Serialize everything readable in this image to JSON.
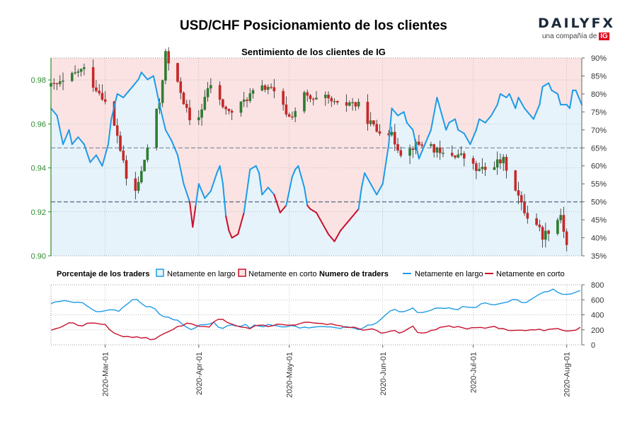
{
  "brand": {
    "name": "DAILYFX",
    "tagline": "una compañía de",
    "tagline_mark": "IG"
  },
  "chart_data": {
    "type": "candlestick",
    "title": "USD/CHF Posicionamiento de los clientes",
    "subtitle": "Sentimiento de los clientes de IG",
    "price_axis": {
      "range": [
        0.9,
        0.99
      ],
      "ticks": [
        "0.90",
        "0.92",
        "0.94",
        "0.96",
        "0.98"
      ],
      "tick_values": [
        0.9,
        0.92,
        0.94,
        0.96,
        0.98
      ]
    },
    "pct_axis": {
      "range": [
        35,
        90
      ],
      "ticks": [
        "35%",
        "40%",
        "45%",
        "50%",
        "55%",
        "60%",
        "65%",
        "70%",
        "75%",
        "80%",
        "85%",
        "90%"
      ],
      "tick_values": [
        35,
        40,
        45,
        50,
        55,
        60,
        65,
        70,
        75,
        80,
        85,
        90
      ]
    },
    "count_axis": {
      "range": [
        0,
        800
      ],
      "ticks": [
        "0",
        "200",
        "400",
        "600",
        "800"
      ],
      "tick_values": [
        0,
        200,
        400,
        600,
        800
      ]
    },
    "x_ticks": [
      "2020-Mar-01",
      "2020-Apr-01",
      "2020-May-01",
      "2020-Jun-01",
      "2020-Jul-01",
      "2020-Aug-01"
    ],
    "x_tick_days": [
      18,
      49,
      79,
      110,
      140,
      171
    ],
    "day_range": [
      0,
      176
    ],
    "reference_lines_pct": [
      50,
      65
    ],
    "colors": {
      "long": "#1e9be6",
      "short": "#c8102e",
      "up": "#2e7d32",
      "down": "#c62828",
      "long_fill": "#e6f3fb",
      "short_fill": "#fbe3e3",
      "axis_green": "#2e8b2e",
      "grid": "#b0b0b0",
      "ref": "#6b7a90"
    },
    "legend": {
      "pct_title": "Porcentaje de los traders",
      "pct_long": "Netamente en largo",
      "pct_short": "Netamente en corto",
      "num_title": "Numero de traders",
      "num_long": "Netamente en largo",
      "num_short": "Netamente en corto"
    },
    "price_path": [
      [
        0,
        0.977
      ],
      [
        5,
        0.979
      ],
      [
        9,
        0.984
      ],
      [
        12,
        0.985
      ],
      [
        14,
        0.978
      ],
      [
        17,
        0.973
      ],
      [
        19,
        0.966
      ],
      [
        22,
        0.955
      ],
      [
        25,
        0.935
      ],
      [
        27,
        0.925
      ],
      [
        30,
        0.938
      ],
      [
        33,
        0.955
      ],
      [
        36,
        0.97
      ],
      [
        38,
        0.992
      ],
      [
        40,
        0.983
      ],
      [
        43,
        0.975
      ],
      [
        45,
        0.966
      ],
      [
        47,
        0.955
      ],
      [
        49,
        0.963
      ],
      [
        51,
        0.972
      ],
      [
        53,
        0.978
      ],
      [
        56,
        0.97
      ],
      [
        59,
        0.965
      ],
      [
        62,
        0.967
      ],
      [
        65,
        0.972
      ],
      [
        68,
        0.975
      ],
      [
        72,
        0.977
      ],
      [
        75,
        0.972
      ],
      [
        79,
        0.963
      ],
      [
        81,
        0.966
      ],
      [
        84,
        0.973
      ],
      [
        87,
        0.97
      ],
      [
        90,
        0.972
      ],
      [
        93,
        0.97
      ],
      [
        96,
        0.967
      ],
      [
        99,
        0.97
      ],
      [
        102,
        0.968
      ],
      [
        105,
        0.962
      ],
      [
        108,
        0.957
      ],
      [
        111,
        0.959
      ],
      [
        114,
        0.952
      ],
      [
        117,
        0.945
      ],
      [
        120,
        0.95
      ],
      [
        123,
        0.951
      ],
      [
        126,
        0.95
      ],
      [
        129,
        0.946
      ],
      [
        132,
        0.946
      ],
      [
        135,
        0.946
      ],
      [
        138,
        0.944
      ],
      [
        141,
        0.939
      ],
      [
        144,
        0.939
      ],
      [
        147,
        0.942
      ],
      [
        150,
        0.943
      ],
      [
        153,
        0.935
      ],
      [
        156,
        0.923
      ],
      [
        158,
        0.918
      ],
      [
        161,
        0.915
      ],
      [
        163,
        0.909
      ],
      [
        165,
        0.912
      ],
      [
        167,
        0.914
      ],
      [
        169,
        0.919
      ],
      [
        171,
        0.905
      ]
    ],
    "pct_long_path": [
      [
        0,
        76
      ],
      [
        2,
        74
      ],
      [
        4,
        66
      ],
      [
        6,
        70
      ],
      [
        7,
        66
      ],
      [
        9,
        68
      ],
      [
        11,
        66
      ],
      [
        13,
        61
      ],
      [
        15,
        63
      ],
      [
        17,
        60
      ],
      [
        19,
        66
      ],
      [
        20,
        73
      ],
      [
        22,
        80
      ],
      [
        24,
        79
      ],
      [
        26,
        81
      ],
      [
        27,
        82
      ],
      [
        29,
        84
      ],
      [
        30,
        86
      ],
      [
        32,
        84
      ],
      [
        34,
        85
      ],
      [
        36,
        77
      ],
      [
        38,
        70
      ],
      [
        40,
        67
      ],
      [
        42,
        63
      ],
      [
        44,
        55
      ],
      [
        46,
        50
      ],
      [
        47,
        43
      ],
      [
        48,
        49
      ],
      [
        49,
        55
      ],
      [
        51,
        51
      ],
      [
        53,
        53
      ],
      [
        55,
        58
      ],
      [
        56,
        60
      ],
      [
        57,
        55
      ],
      [
        58,
        46
      ],
      [
        59,
        42
      ],
      [
        60,
        40
      ],
      [
        62,
        41
      ],
      [
        64,
        47
      ],
      [
        66,
        59
      ],
      [
        68,
        60
      ],
      [
        69,
        58
      ],
      [
        70,
        52
      ],
      [
        72,
        54
      ],
      [
        74,
        52
      ],
      [
        76,
        47
      ],
      [
        78,
        49
      ],
      [
        80,
        57
      ],
      [
        81,
        59
      ],
      [
        82,
        60
      ],
      [
        84,
        54
      ],
      [
        85,
        49
      ],
      [
        86,
        48
      ],
      [
        88,
        47
      ],
      [
        90,
        44
      ],
      [
        92,
        41
      ],
      [
        94,
        39
      ],
      [
        96,
        42
      ],
      [
        98,
        44
      ],
      [
        100,
        46
      ],
      [
        102,
        48
      ],
      [
        103,
        54
      ],
      [
        104,
        58
      ],
      [
        106,
        55
      ],
      [
        108,
        52
      ],
      [
        110,
        55
      ],
      [
        112,
        66
      ],
      [
        113,
        76
      ],
      [
        115,
        74
      ],
      [
        117,
        75
      ],
      [
        118,
        72
      ],
      [
        120,
        70
      ],
      [
        122,
        62
      ],
      [
        124,
        66
      ],
      [
        126,
        70
      ],
      [
        128,
        79
      ],
      [
        129,
        76
      ],
      [
        131,
        70
      ],
      [
        132,
        72
      ],
      [
        134,
        73
      ],
      [
        135,
        70
      ],
      [
        137,
        69
      ],
      [
        139,
        66
      ],
      [
        141,
        70
      ],
      [
        142,
        73
      ],
      [
        144,
        72
      ],
      [
        146,
        74
      ],
      [
        148,
        77
      ],
      [
        149,
        80
      ],
      [
        151,
        79
      ],
      [
        152,
        80
      ],
      [
        154,
        76
      ],
      [
        155,
        79
      ],
      [
        157,
        76
      ],
      [
        158,
        75
      ],
      [
        160,
        73
      ],
      [
        162,
        77
      ],
      [
        163,
        82
      ],
      [
        165,
        83
      ],
      [
        166,
        81
      ],
      [
        168,
        80
      ],
      [
        169,
        77
      ],
      [
        171,
        77
      ],
      [
        172,
        76
      ],
      [
        173,
        81
      ],
      [
        174,
        81
      ],
      [
        175,
        79
      ],
      [
        176,
        77
      ]
    ],
    "long_counts_path": [
      [
        0,
        550
      ],
      [
        3,
        590
      ],
      [
        5,
        600
      ],
      [
        7,
        560
      ],
      [
        9,
        580
      ],
      [
        11,
        540
      ],
      [
        13,
        490
      ],
      [
        15,
        450
      ],
      [
        17,
        430
      ],
      [
        19,
        470
      ],
      [
        20,
        490
      ],
      [
        22,
        440
      ],
      [
        24,
        500
      ],
      [
        26,
        580
      ],
      [
        28,
        620
      ],
      [
        30,
        560
      ],
      [
        32,
        510
      ],
      [
        34,
        480
      ],
      [
        36,
        420
      ],
      [
        38,
        360
      ],
      [
        40,
        350
      ],
      [
        42,
        330
      ],
      [
        44,
        260
      ],
      [
        46,
        200
      ],
      [
        48,
        240
      ],
      [
        50,
        260
      ],
      [
        52,
        280
      ],
      [
        54,
        300
      ],
      [
        56,
        220
      ],
      [
        58,
        240
      ],
      [
        60,
        270
      ],
      [
        62,
        250
      ],
      [
        64,
        270
      ],
      [
        66,
        230
      ],
      [
        68,
        260
      ],
      [
        70,
        240
      ],
      [
        72,
        270
      ],
      [
        74,
        260
      ],
      [
        76,
        230
      ],
      [
        78,
        250
      ],
      [
        80,
        270
      ],
      [
        82,
        230
      ],
      [
        84,
        250
      ],
      [
        86,
        220
      ],
      [
        88,
        240
      ],
      [
        90,
        230
      ],
      [
        92,
        250
      ],
      [
        94,
        230
      ],
      [
        96,
        220
      ],
      [
        98,
        240
      ],
      [
        100,
        230
      ],
      [
        102,
        210
      ],
      [
        104,
        240
      ],
      [
        106,
        270
      ],
      [
        108,
        300
      ],
      [
        110,
        350
      ],
      [
        112,
        430
      ],
      [
        114,
        460
      ],
      [
        116,
        420
      ],
      [
        118,
        450
      ],
      [
        120,
        490
      ],
      [
        122,
        430
      ],
      [
        124,
        440
      ],
      [
        126,
        470
      ],
      [
        128,
        500
      ],
      [
        130,
        470
      ],
      [
        132,
        500
      ],
      [
        134,
        450
      ],
      [
        136,
        520
      ],
      [
        138,
        500
      ],
      [
        140,
        500
      ],
      [
        142,
        520
      ],
      [
        144,
        560
      ],
      [
        146,
        520
      ],
      [
        148,
        540
      ],
      [
        150,
        570
      ],
      [
        152,
        560
      ],
      [
        154,
        620
      ],
      [
        156,
        580
      ],
      [
        158,
        570
      ],
      [
        160,
        620
      ],
      [
        162,
        670
      ],
      [
        164,
        700
      ],
      [
        166,
        740
      ],
      [
        168,
        710
      ],
      [
        170,
        680
      ],
      [
        172,
        690
      ],
      [
        174,
        700
      ],
      [
        176,
        720
      ]
    ],
    "short_counts_path": [
      [
        0,
        190
      ],
      [
        2,
        210
      ],
      [
        4,
        260
      ],
      [
        6,
        300
      ],
      [
        8,
        280
      ],
      [
        10,
        250
      ],
      [
        12,
        280
      ],
      [
        14,
        300
      ],
      [
        16,
        270
      ],
      [
        18,
        260
      ],
      [
        20,
        180
      ],
      [
        22,
        140
      ],
      [
        24,
        110
      ],
      [
        26,
        110
      ],
      [
        28,
        100
      ],
      [
        30,
        100
      ],
      [
        32,
        90
      ],
      [
        34,
        70
      ],
      [
        36,
        120
      ],
      [
        38,
        160
      ],
      [
        40,
        190
      ],
      [
        42,
        240
      ],
      [
        44,
        260
      ],
      [
        46,
        300
      ],
      [
        48,
        270
      ],
      [
        50,
        240
      ],
      [
        52,
        230
      ],
      [
        54,
        300
      ],
      [
        56,
        350
      ],
      [
        58,
        310
      ],
      [
        60,
        270
      ],
      [
        62,
        240
      ],
      [
        64,
        230
      ],
      [
        66,
        220
      ],
      [
        68,
        250
      ],
      [
        70,
        260
      ],
      [
        72,
        240
      ],
      [
        74,
        260
      ],
      [
        76,
        280
      ],
      [
        78,
        270
      ],
      [
        80,
        260
      ],
      [
        82,
        280
      ],
      [
        84,
        300
      ],
      [
        86,
        290
      ],
      [
        88,
        300
      ],
      [
        90,
        280
      ],
      [
        92,
        260
      ],
      [
        94,
        280
      ],
      [
        96,
        250
      ],
      [
        98,
        240
      ],
      [
        100,
        230
      ],
      [
        102,
        220
      ],
      [
        104,
        200
      ],
      [
        106,
        210
      ],
      [
        108,
        190
      ],
      [
        110,
        160
      ],
      [
        112,
        190
      ],
      [
        114,
        180
      ],
      [
        116,
        150
      ],
      [
        118,
        200
      ],
      [
        120,
        250
      ],
      [
        122,
        150
      ],
      [
        124,
        160
      ],
      [
        126,
        180
      ],
      [
        128,
        220
      ],
      [
        130,
        230
      ],
      [
        132,
        250
      ],
      [
        134,
        240
      ],
      [
        136,
        230
      ],
      [
        138,
        210
      ],
      [
        140,
        230
      ],
      [
        142,
        230
      ],
      [
        144,
        220
      ],
      [
        146,
        240
      ],
      [
        148,
        230
      ],
      [
        150,
        220
      ],
      [
        152,
        180
      ],
      [
        154,
        200
      ],
      [
        156,
        200
      ],
      [
        158,
        190
      ],
      [
        160,
        200
      ],
      [
        162,
        220
      ],
      [
        164,
        190
      ],
      [
        166,
        200
      ],
      [
        168,
        210
      ],
      [
        170,
        180
      ],
      [
        172,
        190
      ],
      [
        174,
        200
      ],
      [
        176,
        230
      ]
    ]
  }
}
